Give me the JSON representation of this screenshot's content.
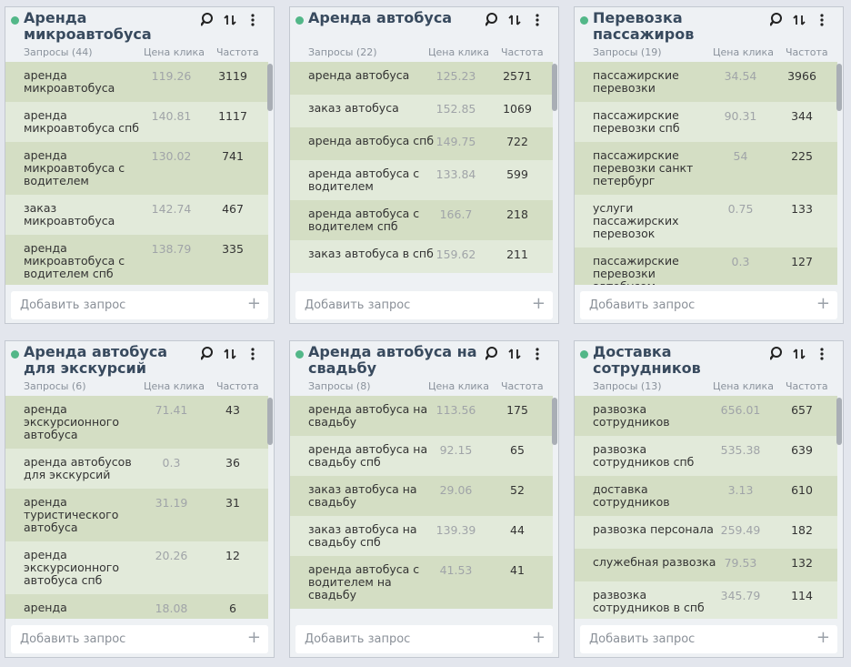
{
  "cards": [
    {
      "title": "Аренда микроавтобуса",
      "columns": [
        "Запросы (44)",
        "Цена клика",
        "Частота"
      ],
      "add_placeholder": "Добавить запрос",
      "rows": [
        [
          "аренда микроавтобуса",
          119.26,
          3119
        ],
        [
          "аренда микроавтобуса спб",
          140.81,
          1117
        ],
        [
          "аренда микроавтобуса с водителем",
          130.02,
          741
        ],
        [
          "заказ микроавтобуса",
          142.74,
          467
        ],
        [
          "аренда микроавтобуса с водителем спб",
          138.79,
          335
        ]
      ]
    },
    {
      "title": "Аренда автобуса",
      "columns": [
        "Запросы (22)",
        "Цена клика",
        "Частота"
      ],
      "add_placeholder": "Добавить запрос",
      "rows": [
        [
          "аренда автобуса",
          125.23,
          2571
        ],
        [
          "заказ автобуса",
          152.85,
          1069
        ],
        [
          "аренда автобуса спб",
          149.75,
          722
        ],
        [
          "аренда автобуса с водителем",
          133.84,
          599
        ],
        [
          "аренда автобуса с водителем спб",
          166.7,
          218
        ],
        [
          "заказ автобуса в спб",
          159.62,
          211
        ]
      ]
    },
    {
      "title": "Перевозка пассажиров",
      "columns": [
        "Запросы (19)",
        "Цена клика",
        "Частота"
      ],
      "add_placeholder": "Добавить запрос",
      "rows": [
        [
          "пассажирские перевозки",
          34.54,
          3966
        ],
        [
          "пассажирские перевозки спб",
          90.31,
          344
        ],
        [
          "пассажирские перевозки санкт петербург",
          54,
          225
        ],
        [
          "услуги пассажирских перевозок",
          0.75,
          133
        ],
        [
          "пассажирские перевозки автобусом",
          0.3,
          127
        ]
      ]
    },
    {
      "title": "Аренда автобуса для экскурсий",
      "columns": [
        "Запросы (6)",
        "Цена клика",
        "Частота"
      ],
      "add_placeholder": "Добавить запрос",
      "rows": [
        [
          "аренда экскурсионного автобуса",
          71.41,
          43
        ],
        [
          "аренда автобусов для экскурсий",
          0.3,
          36
        ],
        [
          "аренда туристического автобуса",
          31.19,
          31
        ],
        [
          "аренда экскурсионного автобуса спб",
          20.26,
          12
        ],
        [
          "аренда",
          18.08,
          6
        ]
      ]
    },
    {
      "title": "Аренда автобуса на свадьбу",
      "columns": [
        "Запросы (8)",
        "Цена клика",
        "Частота"
      ],
      "add_placeholder": "Добавить запрос",
      "rows": [
        [
          "аренда автобуса на свадьбу",
          113.56,
          175
        ],
        [
          "аренда автобуса на свадьбу спб",
          92.15,
          65
        ],
        [
          "заказ автобуса на свадьбу",
          29.06,
          52
        ],
        [
          "заказ автобуса на свадьбу спб",
          139.39,
          44
        ],
        [
          "аренда автобуса с водителем на свадьбу",
          41.53,
          41
        ]
      ]
    },
    {
      "title": "Доставка сотрудников",
      "columns": [
        "Запросы (13)",
        "Цена клика",
        "Частота"
      ],
      "add_placeholder": "Добавить запрос",
      "rows": [
        [
          "развозка сотрудников",
          656.01,
          657
        ],
        [
          "развозка сотрудников спб",
          535.38,
          639
        ],
        [
          "доставка сотрудников",
          3.13,
          610
        ],
        [
          "развозка персонала",
          259.49,
          182
        ],
        [
          "служебная развозка",
          79.53,
          132
        ],
        [
          "развозка сотрудников в спб",
          345.79,
          114
        ]
      ]
    }
  ]
}
